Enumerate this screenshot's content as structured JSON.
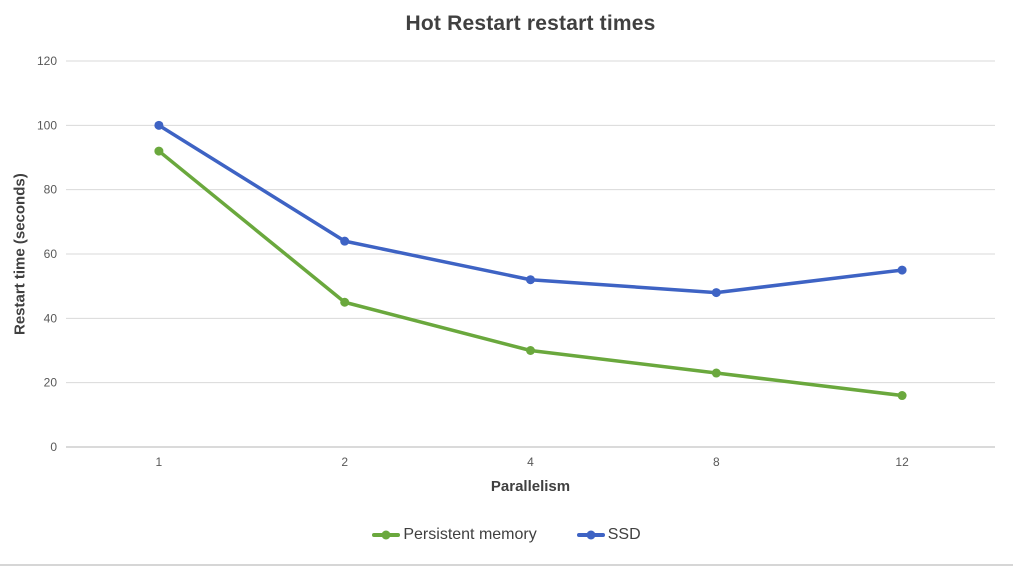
{
  "chart_data": {
    "type": "line",
    "title": "Hot Restart restart times",
    "xlabel": "Parallelism",
    "ylabel": "Restart time (seconds)",
    "categories": [
      "1",
      "2",
      "4",
      "8",
      "12"
    ],
    "series": [
      {
        "name": "Persistent memory",
        "color": "#6AA83D",
        "values": [
          92,
          45,
          30,
          23,
          16
        ]
      },
      {
        "name": "SSD",
        "color": "#3E63C4",
        "values": [
          100,
          64,
          52,
          48,
          55
        ]
      }
    ],
    "ylim": [
      0,
      120
    ],
    "yticks": [
      0,
      20,
      40,
      60,
      80,
      100,
      120
    ],
    "grid": "horizontal",
    "legend_position": "bottom",
    "colors": {
      "title_text": "#404040",
      "tick_label": "#595959",
      "gridline": "#D9D9D9",
      "axis_line": "#CDCDCD",
      "background": "#FFFFFF"
    }
  }
}
